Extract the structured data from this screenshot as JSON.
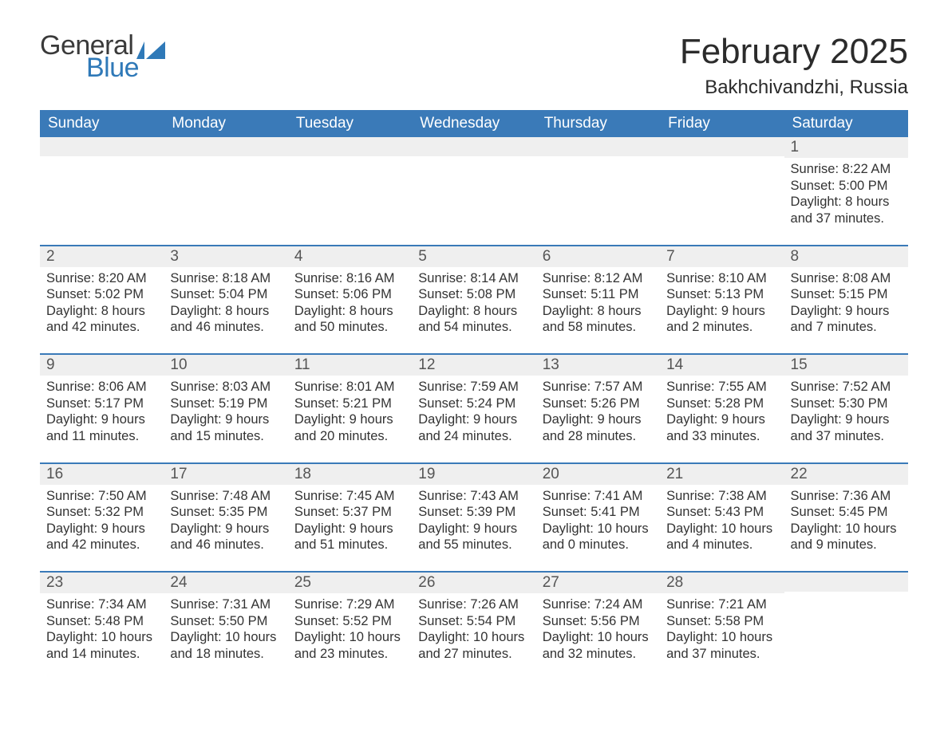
{
  "logo": {
    "line1": "General",
    "line2": "Blue",
    "color_general": "#3a3a3a",
    "color_blue": "#2f79b8",
    "flag_color": "#2f79b8"
  },
  "header": {
    "title": "February 2025",
    "location": "Bakhchivandzhi, Russia"
  },
  "calendar": {
    "day_names": [
      "Sunday",
      "Monday",
      "Tuesday",
      "Wednesday",
      "Thursday",
      "Friday",
      "Saturday"
    ],
    "header_bg": "#3a7ab8",
    "header_text_color": "#ffffff",
    "row_separator_color": "#3a7ab8",
    "daynum_bg": "#efefef",
    "background": "#ffffff",
    "weeks": [
      [
        null,
        null,
        null,
        null,
        null,
        null,
        {
          "num": "1",
          "sunrise": "Sunrise: 8:22 AM",
          "sunset": "Sunset: 5:00 PM",
          "daylight": "Daylight: 8 hours and 37 minutes."
        }
      ],
      [
        {
          "num": "2",
          "sunrise": "Sunrise: 8:20 AM",
          "sunset": "Sunset: 5:02 PM",
          "daylight": "Daylight: 8 hours and 42 minutes."
        },
        {
          "num": "3",
          "sunrise": "Sunrise: 8:18 AM",
          "sunset": "Sunset: 5:04 PM",
          "daylight": "Daylight: 8 hours and 46 minutes."
        },
        {
          "num": "4",
          "sunrise": "Sunrise: 8:16 AM",
          "sunset": "Sunset: 5:06 PM",
          "daylight": "Daylight: 8 hours and 50 minutes."
        },
        {
          "num": "5",
          "sunrise": "Sunrise: 8:14 AM",
          "sunset": "Sunset: 5:08 PM",
          "daylight": "Daylight: 8 hours and 54 minutes."
        },
        {
          "num": "6",
          "sunrise": "Sunrise: 8:12 AM",
          "sunset": "Sunset: 5:11 PM",
          "daylight": "Daylight: 8 hours and 58 minutes."
        },
        {
          "num": "7",
          "sunrise": "Sunrise: 8:10 AM",
          "sunset": "Sunset: 5:13 PM",
          "daylight": "Daylight: 9 hours and 2 minutes."
        },
        {
          "num": "8",
          "sunrise": "Sunrise: 8:08 AM",
          "sunset": "Sunset: 5:15 PM",
          "daylight": "Daylight: 9 hours and 7 minutes."
        }
      ],
      [
        {
          "num": "9",
          "sunrise": "Sunrise: 8:06 AM",
          "sunset": "Sunset: 5:17 PM",
          "daylight": "Daylight: 9 hours and 11 minutes."
        },
        {
          "num": "10",
          "sunrise": "Sunrise: 8:03 AM",
          "sunset": "Sunset: 5:19 PM",
          "daylight": "Daylight: 9 hours and 15 minutes."
        },
        {
          "num": "11",
          "sunrise": "Sunrise: 8:01 AM",
          "sunset": "Sunset: 5:21 PM",
          "daylight": "Daylight: 9 hours and 20 minutes."
        },
        {
          "num": "12",
          "sunrise": "Sunrise: 7:59 AM",
          "sunset": "Sunset: 5:24 PM",
          "daylight": "Daylight: 9 hours and 24 minutes."
        },
        {
          "num": "13",
          "sunrise": "Sunrise: 7:57 AM",
          "sunset": "Sunset: 5:26 PM",
          "daylight": "Daylight: 9 hours and 28 minutes."
        },
        {
          "num": "14",
          "sunrise": "Sunrise: 7:55 AM",
          "sunset": "Sunset: 5:28 PM",
          "daylight": "Daylight: 9 hours and 33 minutes."
        },
        {
          "num": "15",
          "sunrise": "Sunrise: 7:52 AM",
          "sunset": "Sunset: 5:30 PM",
          "daylight": "Daylight: 9 hours and 37 minutes."
        }
      ],
      [
        {
          "num": "16",
          "sunrise": "Sunrise: 7:50 AM",
          "sunset": "Sunset: 5:32 PM",
          "daylight": "Daylight: 9 hours and 42 minutes."
        },
        {
          "num": "17",
          "sunrise": "Sunrise: 7:48 AM",
          "sunset": "Sunset: 5:35 PM",
          "daylight": "Daylight: 9 hours and 46 minutes."
        },
        {
          "num": "18",
          "sunrise": "Sunrise: 7:45 AM",
          "sunset": "Sunset: 5:37 PM",
          "daylight": "Daylight: 9 hours and 51 minutes."
        },
        {
          "num": "19",
          "sunrise": "Sunrise: 7:43 AM",
          "sunset": "Sunset: 5:39 PM",
          "daylight": "Daylight: 9 hours and 55 minutes."
        },
        {
          "num": "20",
          "sunrise": "Sunrise: 7:41 AM",
          "sunset": "Sunset: 5:41 PM",
          "daylight": "Daylight: 10 hours and 0 minutes."
        },
        {
          "num": "21",
          "sunrise": "Sunrise: 7:38 AM",
          "sunset": "Sunset: 5:43 PM",
          "daylight": "Daylight: 10 hours and 4 minutes."
        },
        {
          "num": "22",
          "sunrise": "Sunrise: 7:36 AM",
          "sunset": "Sunset: 5:45 PM",
          "daylight": "Daylight: 10 hours and 9 minutes."
        }
      ],
      [
        {
          "num": "23",
          "sunrise": "Sunrise: 7:34 AM",
          "sunset": "Sunset: 5:48 PM",
          "daylight": "Daylight: 10 hours and 14 minutes."
        },
        {
          "num": "24",
          "sunrise": "Sunrise: 7:31 AM",
          "sunset": "Sunset: 5:50 PM",
          "daylight": "Daylight: 10 hours and 18 minutes."
        },
        {
          "num": "25",
          "sunrise": "Sunrise: 7:29 AM",
          "sunset": "Sunset: 5:52 PM",
          "daylight": "Daylight: 10 hours and 23 minutes."
        },
        {
          "num": "26",
          "sunrise": "Sunrise: 7:26 AM",
          "sunset": "Sunset: 5:54 PM",
          "daylight": "Daylight: 10 hours and 27 minutes."
        },
        {
          "num": "27",
          "sunrise": "Sunrise: 7:24 AM",
          "sunset": "Sunset: 5:56 PM",
          "daylight": "Daylight: 10 hours and 32 minutes."
        },
        {
          "num": "28",
          "sunrise": "Sunrise: 7:21 AM",
          "sunset": "Sunset: 5:58 PM",
          "daylight": "Daylight: 10 hours and 37 minutes."
        },
        null
      ]
    ]
  }
}
